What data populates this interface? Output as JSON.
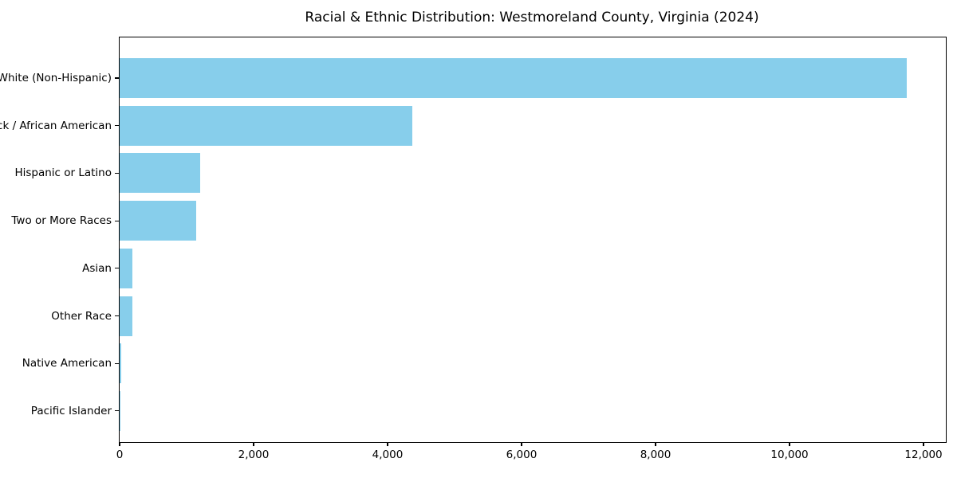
{
  "figure": {
    "background": "#ffffff",
    "axis_color": "#000000",
    "text_color": "#000000"
  },
  "chart_data": {
    "type": "bar",
    "orientation": "horizontal",
    "title": "Racial & Ethnic Distribution: Westmoreland County, Virginia (2024)",
    "categories": [
      "White (Non-Hispanic)",
      "Black / African American",
      "Hispanic or Latino",
      "Two or More Races",
      "Asian",
      "Other Race",
      "Native American",
      "Pacific Islander"
    ],
    "values": [
      11750,
      4365,
      1200,
      1140,
      190,
      190,
      20,
      5
    ],
    "bar_color": "#87CEEB",
    "xlabel": "",
    "ylabel": "",
    "xlim": [
      0,
      12333
    ],
    "xticks": [
      0,
      2000,
      4000,
      6000,
      8000,
      10000,
      12000
    ],
    "xtick_labels": [
      "0",
      "2,000",
      "4,000",
      "6,000",
      "8,000",
      "10,000",
      "12,000"
    ],
    "grid": false,
    "legend": null
  }
}
